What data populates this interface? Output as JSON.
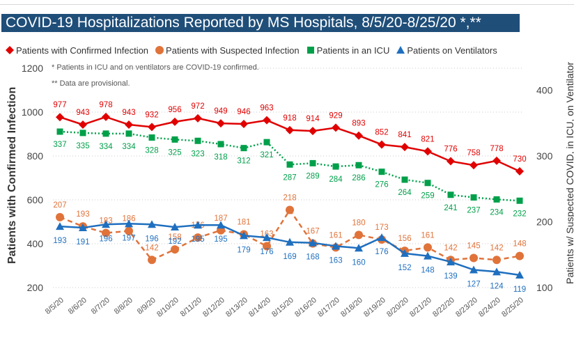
{
  "title": "COVID-19 Hospitalizations Reported by MS Hospitals, 8/5/20-8/25/20 *,**",
  "notes": [
    "* Patients in ICU and on ventilators are COVID-19 confirmed.",
    "** Data are provisional."
  ],
  "chart_data": {
    "type": "line",
    "title": "COVID-19 Hospitalizations Reported by MS Hospitals, 8/5/20-8/25/20 *,**",
    "xlabel": "",
    "ylabel": "Patients with Confirmed Infection",
    "y2label": "Patients w/ Suspected COVID, in ICU, on Ventilator",
    "ylim": [
      200,
      1200
    ],
    "yticks": [
      200,
      400,
      600,
      800,
      1000,
      1200
    ],
    "y2lim": [
      100,
      433.33
    ],
    "y2ticks": [
      100,
      200,
      300,
      400
    ],
    "grid": true,
    "legend_position": "top",
    "categories": [
      "8/5/20",
      "8/6/20",
      "8/7/20",
      "8/8/20",
      "8/9/20",
      "8/10/20",
      "8/11/20",
      "8/12/20",
      "8/13/20",
      "8/14/20",
      "8/15/20",
      "8/16/20",
      "8/17/20",
      "8/18/20",
      "8/19/20",
      "8/20/20",
      "8/21/20",
      "8/22/20",
      "8/23/20",
      "8/24/20",
      "8/25/20"
    ],
    "series": [
      {
        "name": "Patients with Confirmed Infection",
        "axis": "left",
        "color": "#e00000",
        "marker": "diamond",
        "dash": "solid",
        "values": [
          977,
          943,
          978,
          943,
          932,
          956,
          972,
          949,
          946,
          963,
          918,
          914,
          929,
          893,
          852,
          841,
          821,
          776,
          758,
          778,
          730
        ]
      },
      {
        "name": "Patients with Suspected Infection",
        "axis": "right",
        "color": "#e0733a",
        "marker": "circle",
        "dash": "dashed",
        "values": [
          207,
          193,
          183,
          186,
          142,
          158,
          176,
          187,
          181,
          163,
          218,
          167,
          161,
          180,
          173,
          156,
          161,
          142,
          145,
          142,
          148
        ]
      },
      {
        "name": "Patients in an ICU",
        "axis": "right",
        "color": "#00a04a",
        "marker": "square",
        "dash": "dotted",
        "values": [
          337,
          335,
          334,
          334,
          328,
          325,
          323,
          318,
          312,
          321,
          287,
          289,
          284,
          286,
          276,
          264,
          259,
          241,
          237,
          234,
          232
        ]
      },
      {
        "name": "Patients on Ventilators",
        "axis": "right",
        "color": "#1f6fbf",
        "marker": "triangle",
        "dash": "solid",
        "values": [
          193,
          191,
          196,
          197,
          196,
          192,
          195,
          195,
          179,
          176,
          169,
          168,
          163,
          160,
          176,
          152,
          148,
          139,
          127,
          124,
          119
        ]
      }
    ]
  }
}
